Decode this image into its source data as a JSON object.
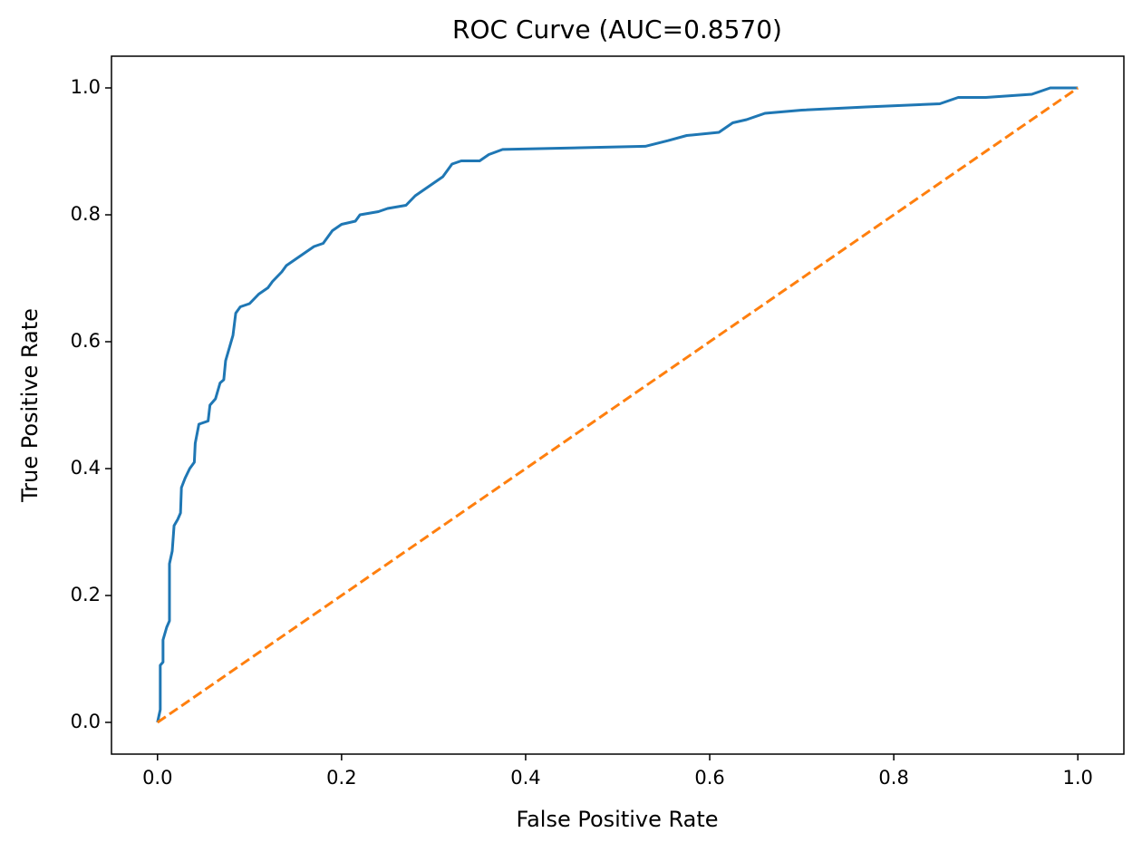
{
  "chart_data": {
    "type": "line",
    "title": "ROC Curve (AUC=0.8570)",
    "xlabel": "False Positive Rate",
    "ylabel": "True Positive Rate",
    "xlim": [
      -0.05,
      1.05
    ],
    "ylim": [
      -0.05,
      1.05
    ],
    "xticks": [
      {
        "value": 0,
        "label": "0.0"
      },
      0.2,
      0.4,
      0.6,
      0.8,
      {
        "value": 1,
        "label": "1.0"
      }
    ],
    "yticks": [
      {
        "value": 0,
        "label": "0.0"
      },
      0.2,
      0.4,
      0.6,
      0.8,
      {
        "value": 1,
        "label": "1.0"
      }
    ],
    "series": [
      {
        "color": "#1f77b4",
        "linestyle": "solid",
        "x": [
          0,
          0.003,
          0.003,
          0.006,
          0.006,
          0.01,
          0.013,
          0.013,
          0.016,
          0.018,
          0.022,
          0.025,
          0.026,
          0.03,
          0.035,
          0.04,
          0.041,
          0.045,
          0.055,
          0.057,
          0.063,
          0.068,
          0.072,
          0.074,
          0.078,
          0.082,
          0.085,
          0.09,
          0.1,
          0.11,
          0.12,
          0.125,
          0.135,
          0.14,
          0.15,
          0.16,
          0.17,
          0.18,
          0.19,
          0.2,
          0.215,
          0.22,
          0.24,
          0.25,
          0.27,
          0.28,
          0.29,
          0.3,
          0.31,
          0.32,
          0.33,
          0.35,
          0.36,
          0.375,
          0.53,
          0.555,
          0.575,
          0.61,
          0.625,
          0.64,
          0.66,
          0.7,
          0.77,
          0.85,
          0.87,
          0.9,
          0.95,
          0.97,
          1
        ],
        "values": [
          0,
          0.02,
          0.09,
          0.095,
          0.13,
          0.15,
          0.16,
          0.25,
          0.27,
          0.31,
          0.32,
          0.33,
          0.37,
          0.385,
          0.4,
          0.41,
          0.44,
          0.47,
          0.475,
          0.5,
          0.51,
          0.535,
          0.54,
          0.57,
          0.59,
          0.61,
          0.645,
          0.655,
          0.66,
          0.675,
          0.685,
          0.695,
          0.71,
          0.72,
          0.73,
          0.74,
          0.75,
          0.755,
          0.775,
          0.785,
          0.79,
          0.8,
          0.805,
          0.81,
          0.815,
          0.83,
          0.84,
          0.85,
          0.86,
          0.88,
          0.885,
          0.885,
          0.895,
          0.903,
          0.908,
          0.917,
          0.925,
          0.93,
          0.945,
          0.95,
          0.96,
          0.965,
          0.97,
          0.975,
          0.985,
          0.985,
          0.99,
          1,
          1
        ]
      },
      {
        "color": "#ff7f0e",
        "linestyle": "dashed",
        "x": [
          0,
          1
        ],
        "values": [
          0,
          1
        ]
      }
    ]
  }
}
